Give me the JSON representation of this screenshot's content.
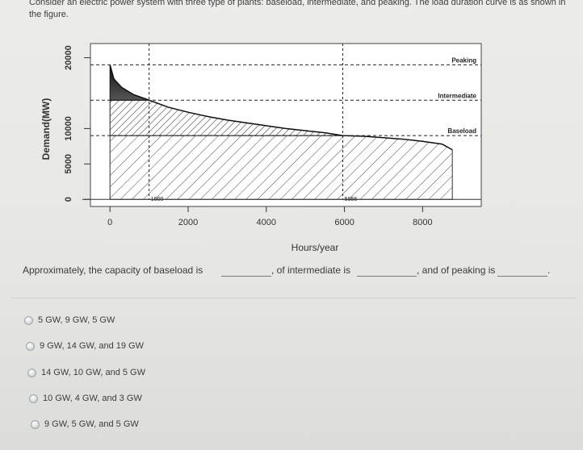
{
  "question": {
    "intro": "Consider an electric power system with three type of plants: baseload, intermediate, and peaking. The load duration curve is as shown in the figure.",
    "prompt_part1": "Approximately, the capacity of baseload is",
    "prompt_part2": ", of intermediate is",
    "prompt_part3": ", and of peaking is",
    "prompt_end": "."
  },
  "chart_data": {
    "type": "area",
    "xlabel": "Hours/year",
    "ylabel": "Demand(MW)",
    "x_ticks": [
      "0",
      "2000",
      "4000",
      "6000",
      "8000"
    ],
    "y_ticks": [
      "0",
      "5000",
      "10000",
      "20000"
    ],
    "xlim": [
      -500,
      9500
    ],
    "ylim": [
      -1000,
      22000
    ],
    "curve": {
      "x": [
        0,
        100,
        300,
        600,
        1000,
        1500,
        2000,
        2500,
        3000,
        3500,
        4000,
        4500,
        5000,
        5500,
        5956,
        6500,
        7000,
        7500,
        8000,
        8500,
        8760
      ],
      "y": [
        19000,
        17000,
        15800,
        14800,
        14000,
        13000,
        12300,
        11700,
        11200,
        10800,
        10400,
        10000,
        9700,
        9400,
        9000,
        8900,
        8700,
        8500,
        8200,
        7800,
        7000
      ]
    },
    "levels": [
      {
        "name": "Peaking",
        "y": 19000
      },
      {
        "name": "Intermediate",
        "y": 14000
      },
      {
        "name": "Baseload",
        "y": 9000
      }
    ],
    "markers": [
      {
        "label": "1000",
        "x": 1000
      },
      {
        "label": "5956",
        "x": 5956
      }
    ],
    "grid": false
  },
  "options": [
    {
      "label": "5 GW, 9 GW, 5 GW"
    },
    {
      "label": "9 GW, 14 GW, and 19 GW"
    },
    {
      "label": "14 GW, 10 GW, and 5 GW"
    },
    {
      "label": "10 GW, 4 GW, and 3 GW"
    },
    {
      "label": "9 GW, 5 GW, and 5 GW"
    }
  ]
}
